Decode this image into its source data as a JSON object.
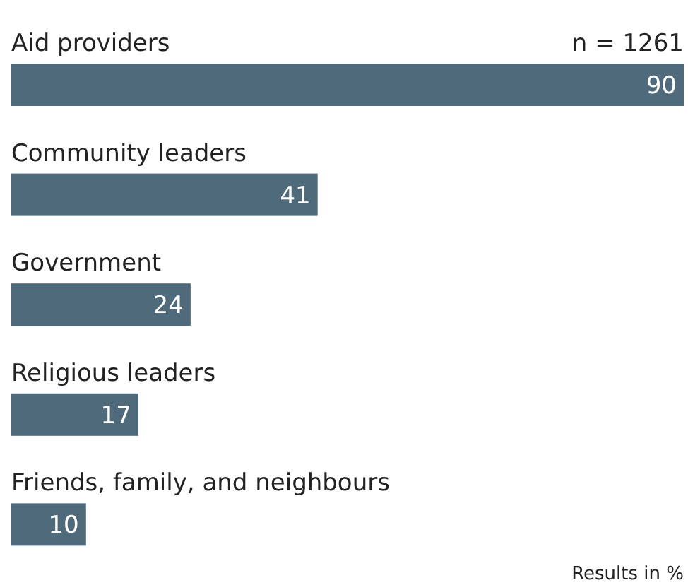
{
  "chart_data": {
    "type": "bar",
    "orientation": "horizontal",
    "categories": [
      "Aid providers",
      "Community leaders",
      "Government",
      "Religious leaders",
      "Friends, family, and neighbours"
    ],
    "values": [
      90,
      41,
      24,
      17,
      10
    ],
    "color": "#4f6a7b",
    "data_labels": true,
    "annotations": [
      "n = 1261",
      "Results in %"
    ]
  }
}
